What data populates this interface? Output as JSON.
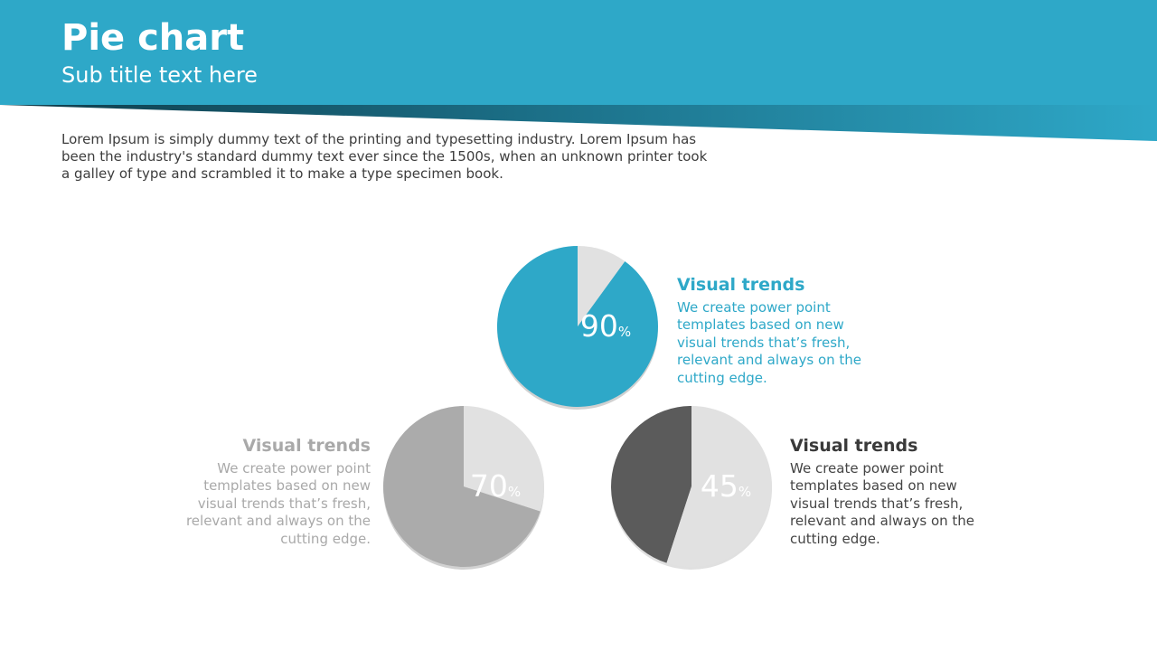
{
  "header": {
    "title": "Pie chart",
    "subtitle": "Sub title text here"
  },
  "intro_text": "Lorem Ipsum is simply dummy text of the printing and typesetting industry. Lorem Ipsum has been the industry's standard dummy text ever since the 1500s, when an unknown printer took a galley of type and scrambled it to make a type specimen book.",
  "colors": {
    "accent": "#2ea8c8",
    "remainder_light": "#e1e1e1",
    "gray_mid": "#ababab",
    "gray_dark": "#5b5b5b"
  },
  "chart_data": [
    {
      "type": "pie",
      "values": [
        90,
        10
      ],
      "label": "90",
      "unit": "%",
      "colors": [
        "#2ea8c8",
        "#e1e1e1"
      ],
      "legend": {
        "title": "Visual trends",
        "text": "We create power point templates based on new visual trends that’s fresh, relevant and always on the cutting edge."
      }
    },
    {
      "type": "pie",
      "values": [
        70,
        30
      ],
      "label": "70",
      "unit": "%",
      "colors": [
        "#ababab",
        "#e1e1e1"
      ],
      "legend": {
        "title": "Visual trends",
        "text": "We create power point templates based on new visual trends that’s fresh, relevant and always on the cutting edge."
      }
    },
    {
      "type": "pie",
      "values": [
        45,
        55
      ],
      "label": "45",
      "unit": "%",
      "colors": [
        "#5b5b5b",
        "#e1e1e1"
      ],
      "legend": {
        "title": "Visual trends",
        "text": "We create power point templates based on new visual trends that’s fresh, relevant and always on the cutting edge."
      }
    }
  ]
}
